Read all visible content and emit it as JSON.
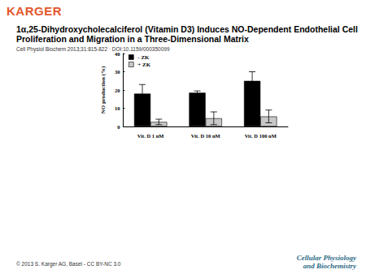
{
  "page": {
    "publisher": "KARGER",
    "title": "1α,25-Dihydroxycholecalciferol (Vitamin D3) Induces NO-Dependent Endothelial Cell Proliferation and Migration in a Three-Dimensional Matrix",
    "citation": "Cell Physiol Biochem 2013;31:815-822 · DOI:10.1159/000350099",
    "copyright": "© 2013 S. Karger AG, Basel - CC BY-NC 3.0",
    "journal": "Cellular Physiology and Biochemistry"
  },
  "chart_data": {
    "type": "bar",
    "y_label": "NO production (%)",
    "categories": [
      "Vit. D 1 nM",
      "Vit. D 10 nM",
      "Vit. D 100 nM"
    ],
    "series": [
      {
        "name": "- ZK",
        "color": "#000000",
        "values": [
          18,
          18.5,
          25
        ],
        "errors": [
          5,
          1,
          5
        ]
      },
      {
        "name": "+ ZK",
        "color": "#c8c8c8",
        "values": [
          2.5,
          4.5,
          5.5
        ],
        "errors": [
          1.5,
          3.5,
          3.5
        ]
      }
    ],
    "ylim": [
      0,
      40
    ],
    "yticks": [
      0,
      10,
      20,
      30,
      40
    ],
    "grid": false,
    "legend": "top-left"
  }
}
